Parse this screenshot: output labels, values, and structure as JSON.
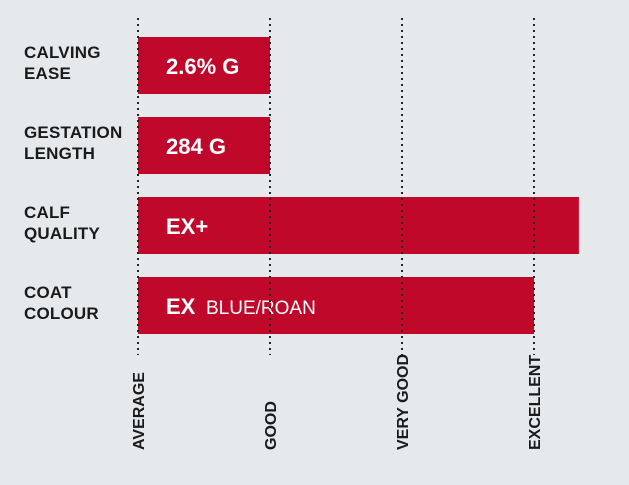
{
  "chart_data": {
    "type": "bar",
    "orientation": "horizontal",
    "title": "",
    "xlabel": "",
    "ylabel": "",
    "grid": true,
    "ticks": [
      "AVERAGE",
      "GOOD",
      "VERY GOOD",
      "EXCELLENT"
    ],
    "xlim": [
      0,
      3.34
    ],
    "bar_color": "#c0082a",
    "categories": [
      {
        "line1": "CALVING",
        "line2": "EASE",
        "value": 1.0,
        "label": "2.6% G",
        "sublabel": ""
      },
      {
        "line1": "GESTATION",
        "line2": "LENGTH",
        "value": 1.0,
        "label": "284 G",
        "sublabel": ""
      },
      {
        "line1": "CALF",
        "line2": "QUALITY",
        "value": 3.34,
        "label": "EX+",
        "sublabel": ""
      },
      {
        "line1": "COAT",
        "line2": "COLOUR",
        "value": 3.0,
        "label": "EX",
        "sublabel": "BLUE/ROAN"
      }
    ]
  }
}
